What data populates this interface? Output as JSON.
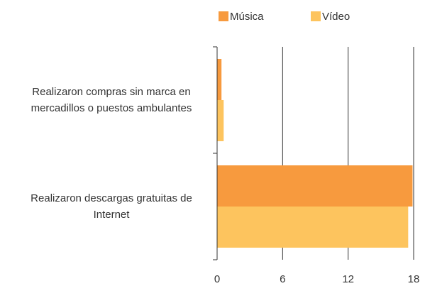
{
  "chart_data": {
    "type": "bar",
    "orientation": "horizontal",
    "categories": [
      "Realizaron compras sin marca en mercadillos o puestos ambulantes",
      "Realizaron descargas gratuitas de Internet"
    ],
    "series": [
      {
        "name": "Música",
        "color": "#f79a3e",
        "values": [
          0.4,
          17.9
        ]
      },
      {
        "name": "Vídeo",
        "color": "#fdc45e",
        "values": [
          0.6,
          17.5
        ]
      }
    ],
    "xlim": [
      0,
      18
    ],
    "xticks": [
      0,
      6,
      12,
      18
    ],
    "grid": true,
    "legend": "top"
  }
}
